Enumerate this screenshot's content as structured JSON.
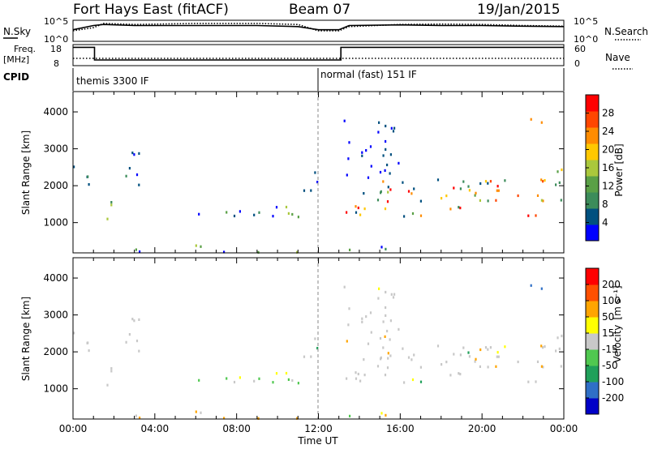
{
  "header": {
    "station": "Fort Hays East (fitACF)",
    "beam": "Beam 07",
    "date": "19/Jan/2015"
  },
  "colors": {
    "power": [
      "#0000ff",
      "#00507f",
      "#3c8c5a",
      "#5aa046",
      "#aac83c",
      "#ffc800",
      "#ff8c00",
      "#ff4600",
      "#ff0000"
    ],
    "velocity": [
      "#0000c8",
      "#2f6fc6",
      "#20a05a",
      "#50c850",
      "#c8c8c8",
      "#ffff00",
      "#ffa500",
      "#ff5000",
      "#ff0000"
    ]
  },
  "chart_data": [
    {
      "type": "line",
      "panel": "N.Sky / N.Search",
      "left_label": "N.Sky",
      "right_label": "N.Search",
      "left_ticks": [
        "10^5",
        "10^0"
      ],
      "right_ticks": [
        "10^5",
        "10^0"
      ],
      "series": [
        {
          "name": "N.Sky",
          "style": "solid",
          "x": [
            0,
            1,
            1.5,
            3,
            6,
            9,
            11,
            12,
            13,
            13.5,
            16,
            18,
            20,
            22,
            24
          ],
          "y": [
            0.55,
            0.75,
            0.8,
            0.75,
            0.75,
            0.75,
            0.7,
            0.55,
            0.55,
            0.75,
            0.78,
            0.75,
            0.75,
            0.72,
            0.7
          ]
        },
        {
          "name": "N.Search",
          "style": "dotted",
          "x": [
            0,
            1,
            1.5,
            3,
            6,
            9,
            11,
            12,
            13,
            13.5,
            16,
            18,
            20,
            22,
            24
          ],
          "y": [
            0.5,
            0.65,
            0.85,
            0.8,
            0.85,
            0.85,
            0.8,
            0.5,
            0.5,
            0.7,
            0.8,
            0.82,
            0.8,
            0.75,
            0.72
          ]
        }
      ]
    },
    {
      "type": "line",
      "panel": "Freq / Nave",
      "left_label": "Freq.",
      "left_unit": "[MHz]",
      "right_label": "Nave",
      "left_ticks": [
        18,
        8
      ],
      "right_ticks": [
        60,
        0
      ],
      "ylim": [
        8,
        18
      ],
      "series": [
        {
          "name": "Freq.",
          "style": "solid",
          "x": [
            0,
            1.05,
            1.05,
            13.1,
            13.1,
            24
          ],
          "y": [
            17,
            17,
            10.5,
            10.5,
            17,
            17
          ]
        },
        {
          "name": "Nave",
          "style": "dotted",
          "x": [
            0,
            1.05,
            12,
            13.1,
            24
          ],
          "y": [
            20,
            20,
            20,
            20,
            20
          ]
        }
      ]
    },
    {
      "type": "table",
      "panel": "CPID",
      "label": "CPID",
      "segments": [
        {
          "start": 0,
          "end": 12,
          "name": "themis 3300 IF"
        },
        {
          "start": 12,
          "end": 24,
          "name": "normal (fast) 151 IF"
        }
      ]
    },
    {
      "type": "heatmap",
      "panel": "Power",
      "ylabel": "Slant Range [km]",
      "yticks": [
        1000,
        2000,
        3000,
        4000
      ],
      "ylim": [
        180,
        4550
      ],
      "xlim": [
        0,
        24
      ],
      "colorbar_label": "Power [dB]",
      "colorbar_ticks": [
        4,
        8,
        12,
        16,
        20,
        24,
        28
      ],
      "clim": [
        0,
        30
      ]
    },
    {
      "type": "heatmap",
      "panel": "Velocity",
      "ylabel": "Slant Range [km]",
      "yticks": [
        1000,
        2000,
        3000,
        4000
      ],
      "ylim": [
        180,
        4550
      ],
      "xlim": [
        0,
        24
      ],
      "xlabel": "Time UT",
      "xticks": [
        "00:00",
        "04:00",
        "08:00",
        "12:00",
        "16:00",
        "20:00",
        "00:00"
      ],
      "colorbar_label": "Velocity",
      "colorbar_unit": "[m s⁻¹]",
      "colorbar_ticks": [
        200,
        100,
        50,
        15,
        -15,
        -50,
        -100,
        -200
      ]
    }
  ]
}
